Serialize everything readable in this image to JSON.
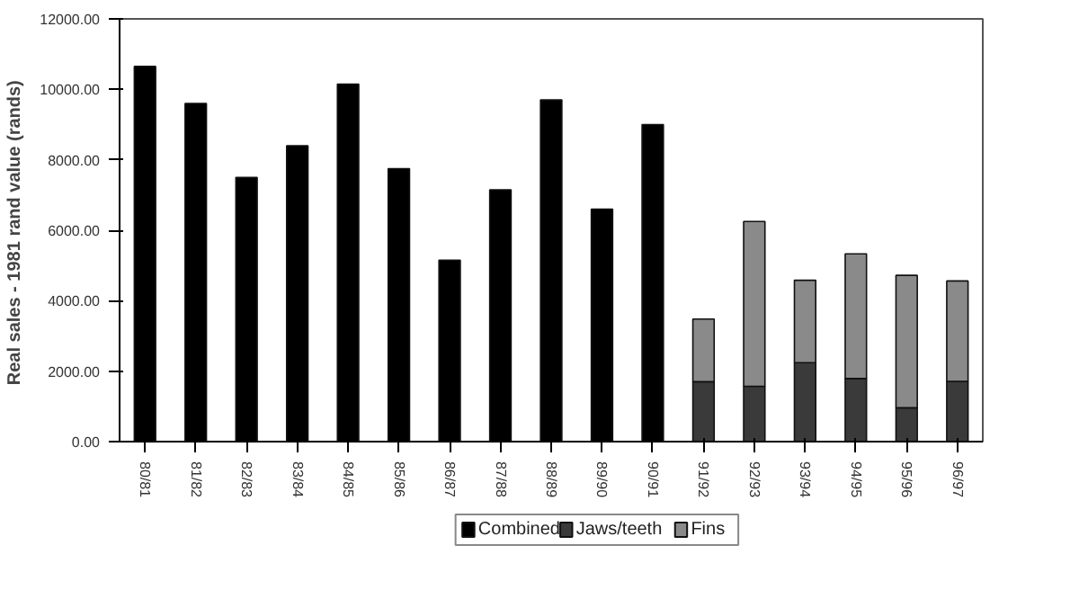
{
  "chart_data": {
    "type": "bar",
    "stacked": true,
    "ylabel": "Real sales - 1981 rand value  (rands)",
    "categories": [
      "80/81",
      "81/82",
      "82/83",
      "83/84",
      "84/85",
      "85/86",
      "86/87",
      "87/88",
      "88/89",
      "89/90",
      "90/91",
      "91/92",
      "92/93",
      "93/94",
      "94/95",
      "95/96",
      "96/97"
    ],
    "series": [
      {
        "name": "Combined",
        "color": "#000000",
        "values": [
          10650,
          9600,
          7500,
          8400,
          10150,
          7750,
          5150,
          7150,
          9700,
          6600,
          9000,
          null,
          null,
          null,
          null,
          null,
          null
        ]
      },
      {
        "name": "Jaws/teeth",
        "color": "#3a3a3a",
        "values": [
          null,
          null,
          null,
          null,
          null,
          null,
          null,
          null,
          null,
          null,
          null,
          1700,
          1570,
          2240,
          1790,
          960,
          1710
        ]
      },
      {
        "name": "Fins",
        "color": "#8a8a8a",
        "values": [
          null,
          null,
          null,
          null,
          null,
          null,
          null,
          null,
          null,
          null,
          null,
          1780,
          4680,
          2340,
          3540,
          3760,
          2850
        ]
      }
    ],
    "ylim": [
      0,
      12000
    ],
    "yticks": [
      {
        "value": 0,
        "label": "0.00"
      },
      {
        "value": 2000,
        "label": "2000.00"
      },
      {
        "value": 4000,
        "label": "4000.00"
      },
      {
        "value": 6000,
        "label": "6000.00"
      },
      {
        "value": 8000,
        "label": "8000.00"
      },
      {
        "value": 10000,
        "label": "10000.00"
      },
      {
        "value": 12000,
        "label": "12000.00"
      }
    ],
    "grid": false,
    "legend": "bottom"
  }
}
